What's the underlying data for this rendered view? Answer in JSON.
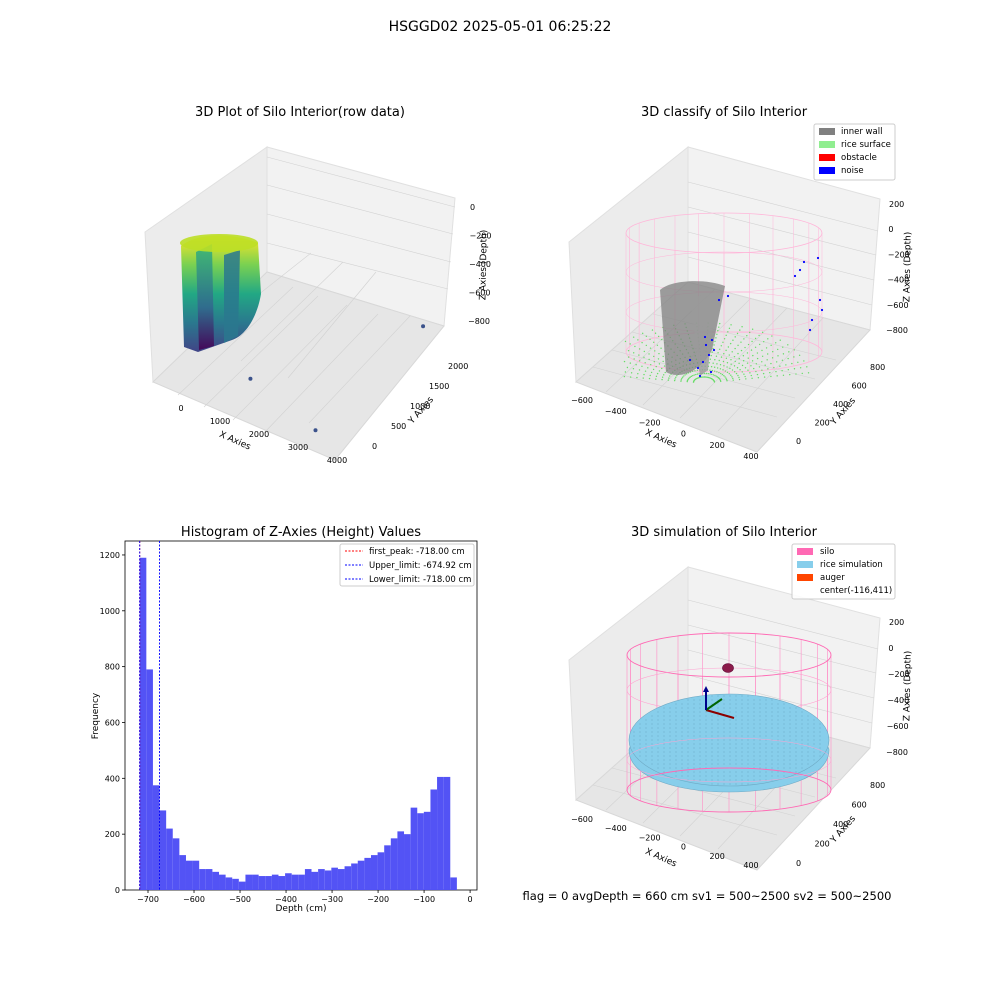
{
  "figure": {
    "suptitle": "HSGGD02 2025-05-01 06:25:22",
    "footer": "flag = 0     avgDepth = 660 cm  sv1 = 500~2500  sv2 = 500~2500"
  },
  "colors": {
    "histogram_bar": "#5050f5",
    "inner_wall": "#808080",
    "rice_surface": "#90ee90",
    "obstacle": "#ff0000",
    "noise": "#0000ff",
    "silo": "#ff69b4",
    "rice_simulation": "#87ceeb",
    "auger": "#ff4500",
    "first_peak_line": "#ff0000",
    "limit_line": "#0000ff"
  },
  "chart_data": [
    {
      "type": "scatter",
      "projection": "3d",
      "title": "3D Plot of Silo Interior(row data)",
      "xlabel": "X Axies",
      "ylabel": "Y Axies",
      "zlabel": "Z Axies (Depth)",
      "xticks": [
        "0",
        "1000",
        "2000",
        "3000",
        "4000"
      ],
      "yticks": [
        "0",
        "500",
        "1000",
        "1500",
        "2000"
      ],
      "zticks": [
        "0",
        "−200",
        "−400",
        "−600",
        "−800"
      ],
      "xlim": [
        -500,
        4200
      ],
      "ylim": [
        -300,
        2300
      ],
      "zlim": [
        -950,
        50
      ],
      "colormap": "viridis",
      "outliers": [
        {
          "x": 3300,
          "y": 50,
          "z": -950
        },
        {
          "x": 3700,
          "y": 2150,
          "z": -800
        },
        {
          "x": 1450,
          "y": 200,
          "z": -850
        }
      ]
    },
    {
      "type": "scatter",
      "projection": "3d",
      "title": "3D classify of Silo Interior",
      "xlabel": "X Axies",
      "ylabel": "Y Axies",
      "zlabel": "Z Axies (Depth)",
      "xticks": [
        "−600",
        "−400",
        "−200",
        "0",
        "200",
        "400"
      ],
      "yticks": [
        "0",
        "200",
        "400",
        "600",
        "800"
      ],
      "zticks": [
        "200",
        "0",
        "−200",
        "−400",
        "−600",
        "−800"
      ],
      "legend": [
        "inner wall",
        "rice surface",
        "obstacle",
        "noise"
      ],
      "legend_position": "top-right"
    },
    {
      "type": "bar",
      "title": "Histogram of Z-Axies (Height) Values",
      "xlabel": "Depth (cm)",
      "ylabel": "Frequency",
      "xlim": [
        -750,
        15
      ],
      "ylim": [
        0,
        1250
      ],
      "xticks": [
        -700,
        -600,
        -500,
        -400,
        -300,
        -200,
        -100,
        0
      ],
      "yticks": [
        0,
        200,
        400,
        600,
        800,
        1000,
        1200
      ],
      "bin_start": -718,
      "bin_width": 14.36,
      "counts": [
        1190,
        790,
        375,
        285,
        220,
        185,
        125,
        105,
        105,
        75,
        75,
        65,
        55,
        45,
        40,
        30,
        55,
        55,
        50,
        50,
        55,
        50,
        60,
        55,
        55,
        75,
        65,
        75,
        70,
        80,
        75,
        85,
        95,
        105,
        115,
        125,
        135,
        160,
        185,
        210,
        200,
        295,
        275,
        280,
        360,
        405,
        405,
        45
      ],
      "vlines": [
        {
          "label": "first_peak: -718.00 cm",
          "x": -718,
          "color": "#ff0000"
        },
        {
          "label": "Upper_limit: -674.92 cm",
          "x": -674.92,
          "color": "#0000ff"
        },
        {
          "label": "Lower_limit: -718.00 cm",
          "x": -718,
          "color": "#0000ff"
        }
      ],
      "legend_position": "top-right"
    },
    {
      "type": "scatter",
      "projection": "3d",
      "title": "3D simulation of Silo Interior",
      "xlabel": "X Axies",
      "ylabel": "Y Axies",
      "zlabel": "Z Axies (Depth)",
      "xticks": [
        "−600",
        "−400",
        "−200",
        "0",
        "200",
        "400"
      ],
      "yticks": [
        "0",
        "200",
        "400",
        "600",
        "800"
      ],
      "zticks": [
        "200",
        "0",
        "−200",
        "−400",
        "−600",
        "−800"
      ],
      "legend": [
        "silo",
        "rice simulation",
        "auger",
        "center(-116,411)"
      ],
      "legend_position": "top-right",
      "center": [
        -116,
        411
      ]
    }
  ]
}
